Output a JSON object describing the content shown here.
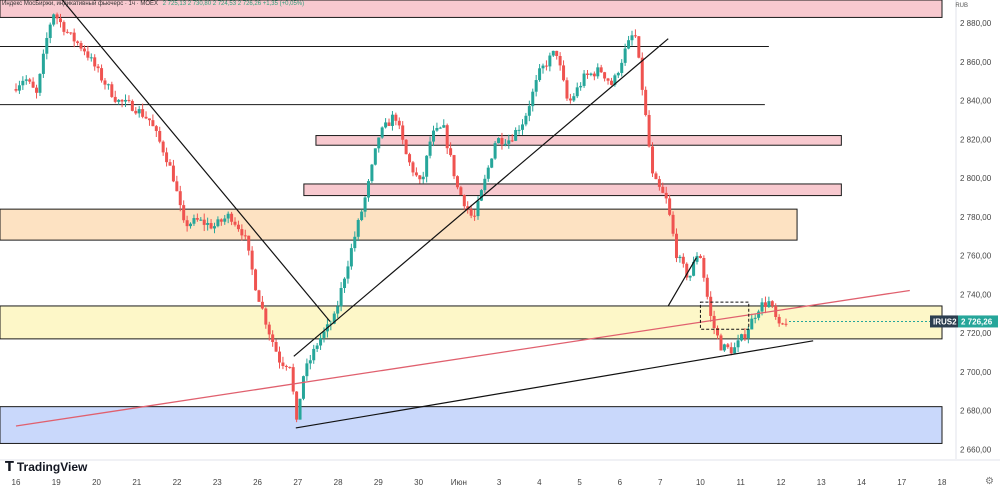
{
  "header": {
    "symbol_line": "Индекс МосБиржи, индикативный фьючерс · 1ч · MOEX",
    "ohlc_line": "2 725,13 2 730,80 2 724,53 2 726,26 +1,35 (+0,05%)",
    "currency": "RUB"
  },
  "branding": {
    "logo_text": "TradingView",
    "settings_icon": "gear-icon"
  },
  "colors": {
    "up_candle": "#26a69a",
    "down_candle": "#ef5350",
    "pink_zone": "#f8c9cf",
    "orange_zone": "#fde2c2",
    "yellow_zone": "#fdf7c8",
    "blue_zone": "#c9d8fb",
    "red_trendline": "#e0606e",
    "price_label_bg": "#26a69a"
  },
  "chart_data": {
    "type": "candlestick",
    "symbol": "IRUS2",
    "last_price_label": "2 726,26",
    "ylim": [
      2656,
      2892
    ],
    "y_ticks": [
      2660,
      2680,
      2700,
      2720,
      2740,
      2760,
      2780,
      2800,
      2820,
      2840,
      2860,
      2880
    ],
    "y_tick_labels": [
      "2 660,00",
      "2 680,00",
      "2 700,00",
      "2 720,00",
      "2 740,00",
      "2 760,00",
      "2 780,00",
      "2 800,00",
      "2 820,00",
      "2 840,00",
      "2 860,00",
      "2 880,00"
    ],
    "x_range": [
      0,
      23
    ],
    "x_ticks": [
      {
        "x": 0.0,
        "label": "16"
      },
      {
        "x": 1.0,
        "label": "19"
      },
      {
        "x": 2.0,
        "label": "20"
      },
      {
        "x": 3.0,
        "label": "21"
      },
      {
        "x": 4.0,
        "label": "22"
      },
      {
        "x": 5.0,
        "label": "23"
      },
      {
        "x": 6.0,
        "label": "26"
      },
      {
        "x": 7.0,
        "label": "27"
      },
      {
        "x": 8.0,
        "label": "28"
      },
      {
        "x": 9.0,
        "label": "29"
      },
      {
        "x": 10.0,
        "label": "30"
      },
      {
        "x": 11.0,
        "label": "Июн"
      },
      {
        "x": 12.0,
        "label": "3"
      },
      {
        "x": 13.0,
        "label": "4"
      },
      {
        "x": 14.0,
        "label": "5"
      },
      {
        "x": 15.0,
        "label": "6"
      },
      {
        "x": 16.0,
        "label": "7"
      },
      {
        "x": 17.0,
        "label": "10"
      },
      {
        "x": 18.0,
        "label": "11"
      },
      {
        "x": 19.0,
        "label": "12"
      },
      {
        "x": 20.0,
        "label": "13"
      },
      {
        "x": 21.0,
        "label": "14"
      },
      {
        "x": 22.0,
        "label": "17"
      },
      {
        "x": 23.0,
        "label": "18"
      }
    ],
    "price_path": [
      [
        0.0,
        2846
      ],
      [
        0.3,
        2852
      ],
      [
        0.6,
        2843
      ],
      [
        0.85,
        2872
      ],
      [
        1.0,
        2886
      ],
      [
        1.4,
        2874
      ],
      [
        1.8,
        2866
      ],
      [
        2.2,
        2852
      ],
      [
        2.6,
        2840
      ],
      [
        3.0,
        2837
      ],
      [
        3.4,
        2830
      ],
      [
        3.8,
        2812
      ],
      [
        4.0,
        2800
      ],
      [
        4.25,
        2776
      ],
      [
        4.6,
        2778
      ],
      [
        5.0,
        2775
      ],
      [
        5.4,
        2781
      ],
      [
        5.75,
        2771
      ],
      [
        6.05,
        2743
      ],
      [
        6.35,
        2722
      ],
      [
        6.65,
        2705
      ],
      [
        6.9,
        2704
      ],
      [
        7.05,
        2672
      ],
      [
        7.2,
        2697
      ],
      [
        7.6,
        2716
      ],
      [
        8.0,
        2728
      ],
      [
        8.25,
        2750
      ],
      [
        8.5,
        2770
      ],
      [
        8.8,
        2793
      ],
      [
        9.1,
        2822
      ],
      [
        9.5,
        2833
      ],
      [
        9.8,
        2810
      ],
      [
        10.15,
        2796
      ],
      [
        10.4,
        2822
      ],
      [
        10.7,
        2826
      ],
      [
        11.05,
        2795
      ],
      [
        11.45,
        2778
      ],
      [
        11.75,
        2800
      ],
      [
        12.0,
        2820
      ],
      [
        12.35,
        2820
      ],
      [
        12.7,
        2830
      ],
      [
        13.1,
        2855
      ],
      [
        13.5,
        2866
      ],
      [
        13.8,
        2838
      ],
      [
        14.2,
        2852
      ],
      [
        14.6,
        2856
      ],
      [
        14.9,
        2848
      ],
      [
        15.2,
        2865
      ],
      [
        15.45,
        2876
      ],
      [
        15.65,
        2845
      ],
      [
        15.9,
        2800
      ],
      [
        16.25,
        2788
      ],
      [
        16.5,
        2760
      ],
      [
        16.8,
        2748
      ],
      [
        17.05,
        2764
      ],
      [
        17.35,
        2727
      ],
      [
        17.6,
        2713
      ],
      [
        17.9,
        2711
      ],
      [
        18.2,
        2720
      ],
      [
        18.55,
        2734
      ],
      [
        18.8,
        2736
      ],
      [
        19.05,
        2722
      ],
      [
        19.2,
        2726
      ]
    ],
    "zones": [
      {
        "x0": 0,
        "x1": 23,
        "y0": 2883,
        "y1": 2892,
        "kind": "pink"
      },
      {
        "x0": 7.45,
        "x1": 20.5,
        "y0": 2817,
        "y1": 2822,
        "kind": "pink"
      },
      {
        "x0": 7.15,
        "x1": 20.5,
        "y0": 2791,
        "y1": 2797,
        "kind": "pink"
      },
      {
        "x0": 0,
        "x1": 19.4,
        "y0": 2768,
        "y1": 2784,
        "kind": "orange"
      },
      {
        "x0": 0,
        "x1": 23,
        "y0": 2717,
        "y1": 2734,
        "kind": "yellow"
      },
      {
        "x0": 0,
        "x1": 23,
        "y0": 2663,
        "y1": 2682,
        "kind": "blue"
      }
    ],
    "horizontal_lines": [
      {
        "x0": 0,
        "x1": 18.7,
        "y": 2868
      },
      {
        "x0": 0,
        "x1": 18.6,
        "y": 2838
      }
    ],
    "trendlines": [
      {
        "from": [
          1.15,
          2892
        ],
        "to": [
          7.8,
          2726
        ],
        "color": "black"
      },
      {
        "from": [
          6.9,
          2708
        ],
        "to": [
          16.2,
          2872
        ],
        "color": "black"
      },
      {
        "from": [
          6.95,
          2671
        ],
        "to": [
          19.8,
          2716
        ],
        "color": "black"
      },
      {
        "from": [
          16.2,
          2734
        ],
        "to": [
          16.9,
          2759
        ],
        "color": "black"
      },
      {
        "from": [
          0.0,
          2672
        ],
        "to": [
          22.2,
          2742
        ],
        "color": "red"
      }
    ],
    "annotation_box": {
      "x0": 17.0,
      "x1": 18.2,
      "y0": 2722,
      "y1": 2736
    }
  }
}
